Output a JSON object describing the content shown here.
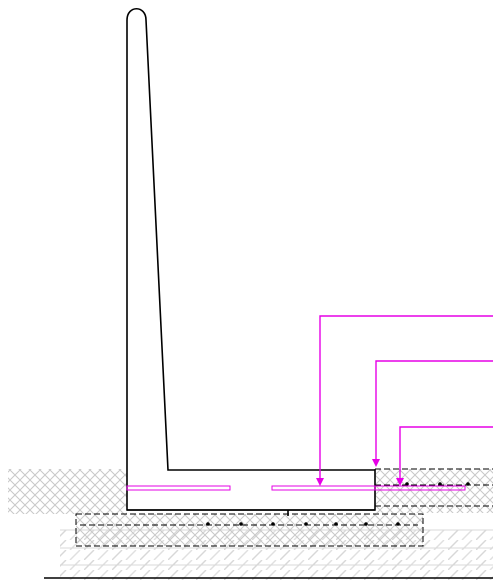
{
  "drawing": {
    "colors": {
      "outline": "#000000",
      "callout": "#e600e6",
      "hatch": "#c8c8c8",
      "ground_stripes": "#d8d8d8",
      "background": "#ffffff"
    }
  }
}
